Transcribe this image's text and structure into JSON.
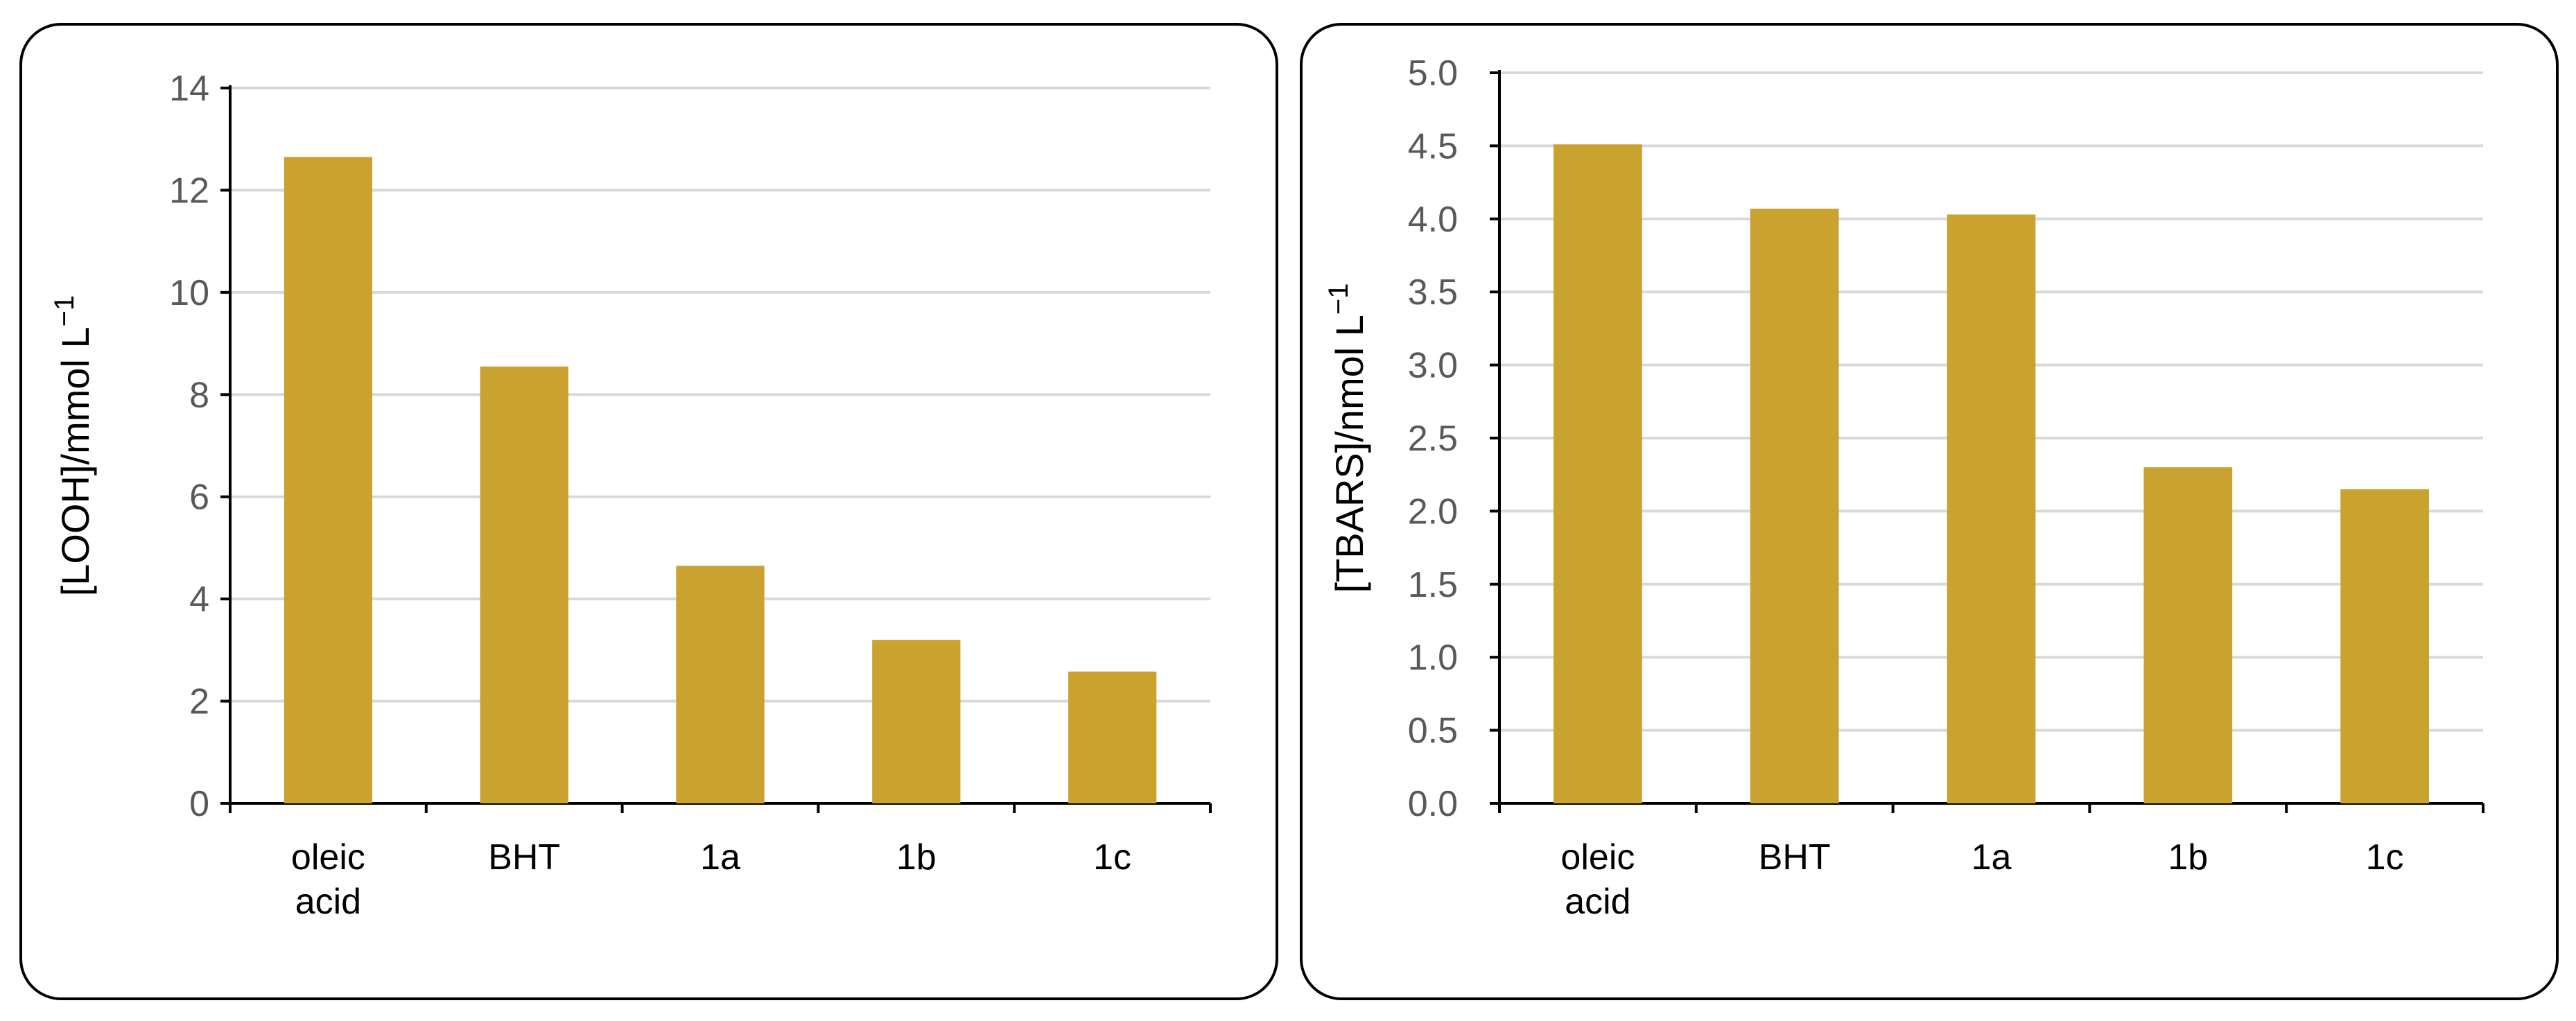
{
  "colors": {
    "bar": "#C9A22F",
    "grid": "#d9d9d9",
    "axis": "#000000",
    "tick": "#595959"
  },
  "chart_data": [
    {
      "type": "bar",
      "categories": [
        [
          "oleic",
          "acid"
        ],
        [
          "BHT"
        ],
        [
          "1a"
        ],
        [
          "1b"
        ],
        [
          "1c"
        ]
      ],
      "values": [
        12.65,
        8.55,
        4.65,
        3.2,
        2.58
      ],
      "ylabel": "[LOOH]/mmol L",
      "ylabel_sup": "−1",
      "ylim": [
        0,
        14
      ],
      "yticks": [
        0,
        2,
        4,
        6,
        8,
        10,
        12,
        14
      ],
      "ytick_labels": [
        "0",
        "2",
        "4",
        "6",
        "8",
        "10",
        "12",
        "14"
      ],
      "grid": true
    },
    {
      "type": "bar",
      "categories": [
        [
          "oleic",
          "acid"
        ],
        [
          "BHT"
        ],
        [
          "1a"
        ],
        [
          "1b"
        ],
        [
          "1c"
        ]
      ],
      "values": [
        4.51,
        4.07,
        4.03,
        2.3,
        2.15
      ],
      "ylabel": "[TBARS]/nmol L",
      "ylabel_sup": "−1",
      "ylim": [
        0,
        5
      ],
      "yticks": [
        0,
        0.5,
        1,
        1.5,
        2,
        2.5,
        3,
        3.5,
        4,
        4.5,
        5
      ],
      "ytick_labels": [
        "0.0",
        "0.5",
        "1.0",
        "1.5",
        "2.0",
        "2.5",
        "3.0",
        "3.5",
        "4.0",
        "4.5",
        "5.0"
      ],
      "grid": true
    }
  ]
}
